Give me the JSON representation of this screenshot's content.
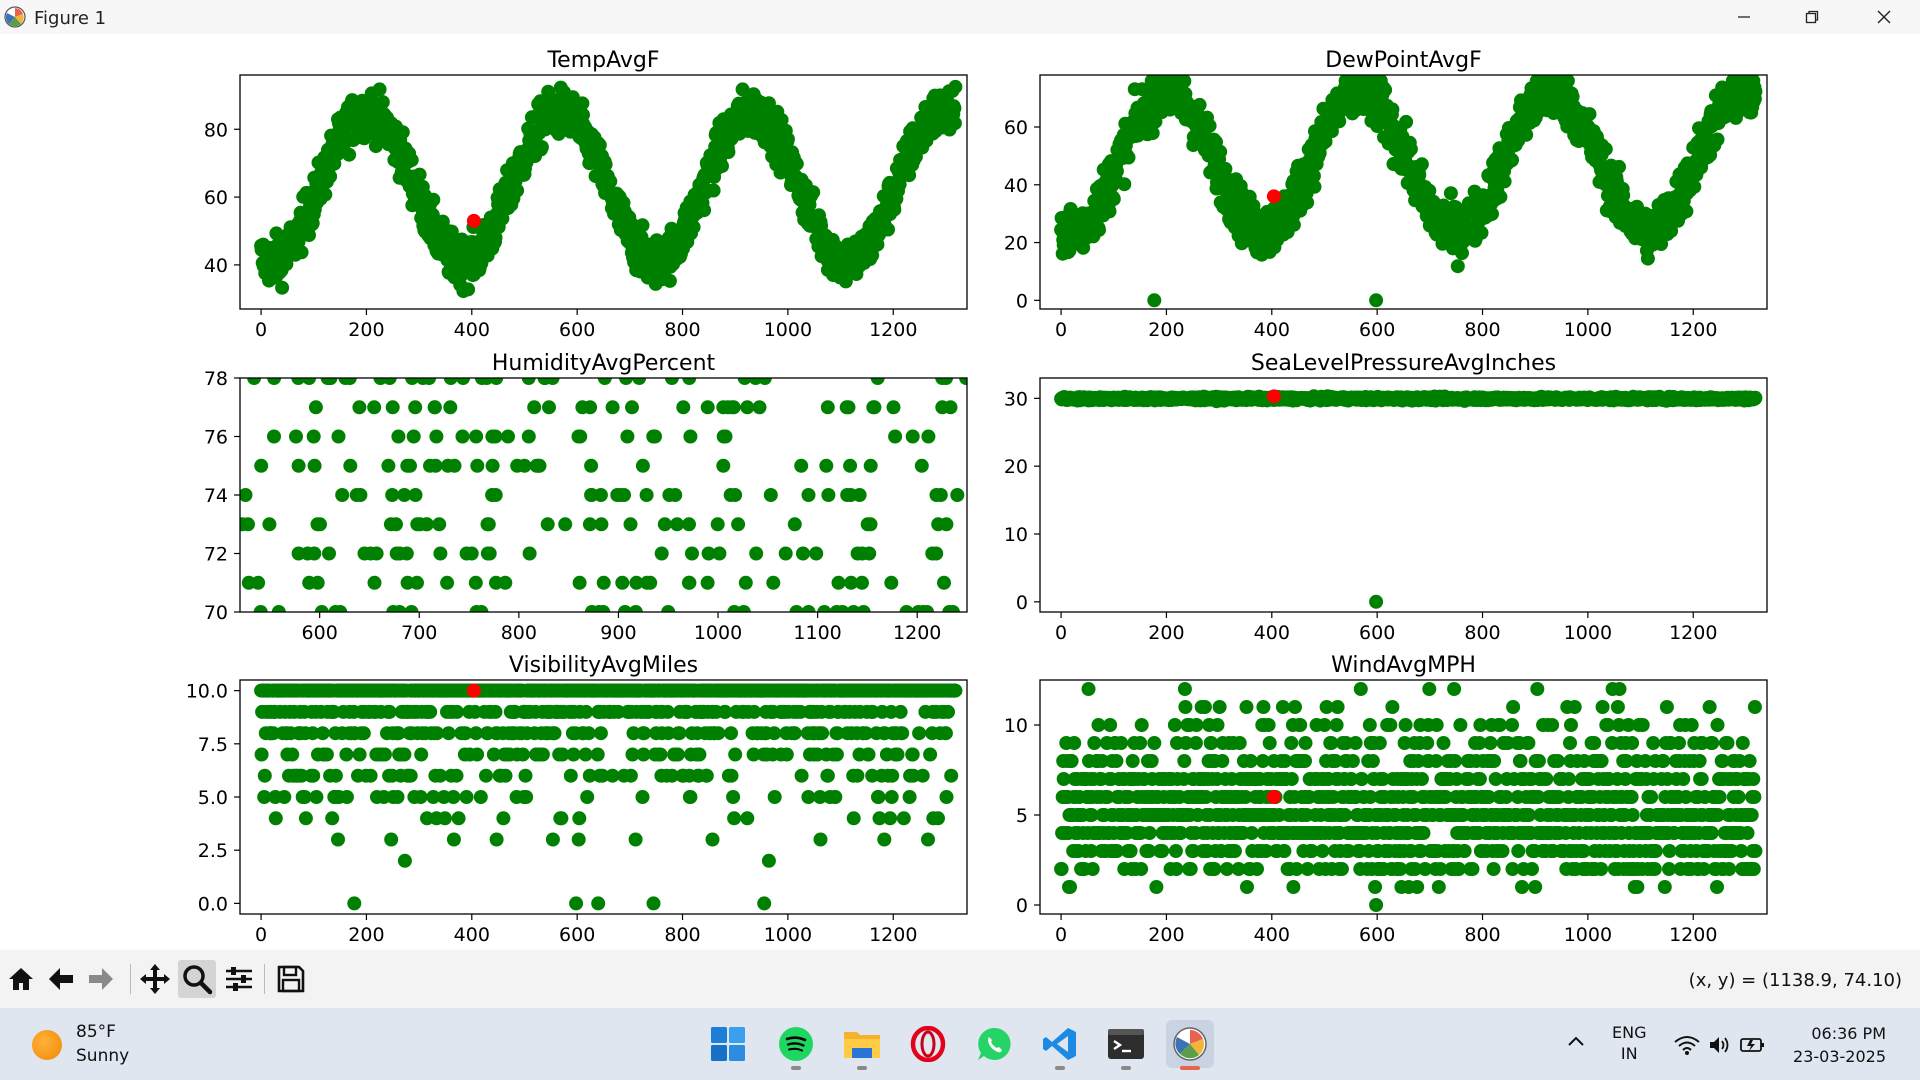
{
  "window": {
    "title": "Figure 1",
    "controls": [
      "minimize",
      "maximize",
      "close"
    ]
  },
  "figure": {
    "marker_color": "#008000",
    "highlight_color": "#ff0000"
  },
  "chart_data": [
    {
      "type": "scatter",
      "title": "TempAvgF",
      "xlim": [
        -40,
        1340
      ],
      "ylim": [
        27,
        96
      ],
      "xticks": [
        0,
        200,
        400,
        600,
        800,
        1000,
        1200
      ],
      "yticks": [
        40,
        60,
        80
      ],
      "series": [
        {
          "pattern": "seasonal",
          "base": 63,
          "amp": 22,
          "noise": 10,
          "min": 28,
          "max": 93,
          "count": 1319
        }
      ],
      "highlight": {
        "x": 404,
        "y": 53
      }
    },
    {
      "type": "scatter",
      "title": "DewPointAvgF",
      "xlim": [
        -40,
        1340
      ],
      "ylim": [
        -3,
        78
      ],
      "xticks": [
        0,
        200,
        400,
        600,
        800,
        1000,
        1200
      ],
      "yticks": [
        0,
        20,
        40,
        60
      ],
      "series": [
        {
          "pattern": "seasonal",
          "base": 48,
          "amp": 24,
          "noise": 13,
          "min": 8,
          "max": 76,
          "count": 1319,
          "outliers": [
            [
              177,
              0
            ],
            [
              598,
              0
            ]
          ]
        }
      ],
      "highlight": {
        "x": 404,
        "y": 36
      }
    },
    {
      "type": "scatter",
      "title": "HumidityAvgPercent",
      "xlim": [
        520,
        1250
      ],
      "ylim": [
        70,
        78
      ],
      "xticks": [
        600,
        700,
        800,
        900,
        1000,
        1100,
        1200
      ],
      "yticks": [
        70,
        72,
        74,
        76,
        78
      ],
      "series": [
        {
          "pattern": "integer-levels",
          "levels": [
            70,
            71,
            72,
            73,
            74,
            75,
            76,
            77,
            78
          ],
          "count": 260
        }
      ]
    },
    {
      "type": "scatter",
      "title": "SeaLevelPressureAvgInches",
      "xlim": [
        -40,
        1340
      ],
      "ylim": [
        -1.5,
        33
      ],
      "xticks": [
        0,
        200,
        400,
        600,
        800,
        1000,
        1200
      ],
      "yticks": [
        0,
        10,
        20,
        30
      ],
      "series": [
        {
          "pattern": "flat",
          "base": 29.95,
          "noise": 0.35,
          "count": 1319,
          "outliers": [
            [
              598,
              0
            ]
          ]
        }
      ],
      "highlight": {
        "x": 404,
        "y": 30.3
      }
    },
    {
      "type": "scatter",
      "title": "VisibilityAvgMiles",
      "xlim": [
        -40,
        1340
      ],
      "ylim": [
        -0.5,
        10.5
      ],
      "xticks": [
        0,
        200,
        400,
        600,
        800,
        1000,
        1200
      ],
      "yticks": [
        "0.0",
        "2.5",
        "5.0",
        "7.5",
        "10.0"
      ],
      "series": [
        {
          "pattern": "discrete",
          "levels": [
            10,
            9,
            8,
            7,
            6,
            5,
            4,
            3,
            2
          ],
          "weights": [
            60,
            14,
            10,
            6,
            4,
            3,
            1.5,
            1,
            0.5
          ],
          "count": 1319,
          "outliers": [
            [
              177,
              0
            ],
            [
              598,
              0
            ],
            [
              640,
              0
            ],
            [
              745,
              0
            ],
            [
              955,
              0
            ]
          ]
        }
      ],
      "highlight": {
        "x": 404,
        "y": 10
      }
    },
    {
      "type": "scatter",
      "title": "WindAvgMPH",
      "xlim": [
        -40,
        1340
      ],
      "ylim": [
        -0.5,
        12.5
      ],
      "xticks": [
        0,
        200,
        400,
        600,
        800,
        1000,
        1200
      ],
      "yticks": [
        0,
        5,
        10
      ],
      "series": [
        {
          "pattern": "discrete",
          "levels": [
            1,
            2,
            3,
            4,
            5,
            6,
            7,
            8,
            9,
            10,
            11,
            12
          ],
          "weights": [
            1,
            7,
            12,
            16,
            17,
            15,
            11,
            7,
            5,
            3,
            1.2,
            0.4
          ],
          "count": 1319,
          "outliers": [
            [
              598,
              0
            ]
          ]
        }
      ],
      "highlight": {
        "x": 404,
        "y": 6
      }
    }
  ],
  "toolbar": {
    "buttons": [
      "home",
      "back",
      "forward",
      "pan",
      "zoom",
      "configure-subplots",
      "save"
    ],
    "coords": "(x, y) = (1138.9, 74.10)"
  },
  "taskbar": {
    "weather_temp": "85°F",
    "weather_cond": "Sunny",
    "apps": [
      "start",
      "spotify",
      "file-explorer",
      "opera",
      "whatsapp",
      "vscode",
      "terminal",
      "matplotlib-figure"
    ],
    "lang_top": "ENG",
    "lang_bottom": "IN",
    "time": "06:36 PM",
    "date": "23-03-2025"
  }
}
